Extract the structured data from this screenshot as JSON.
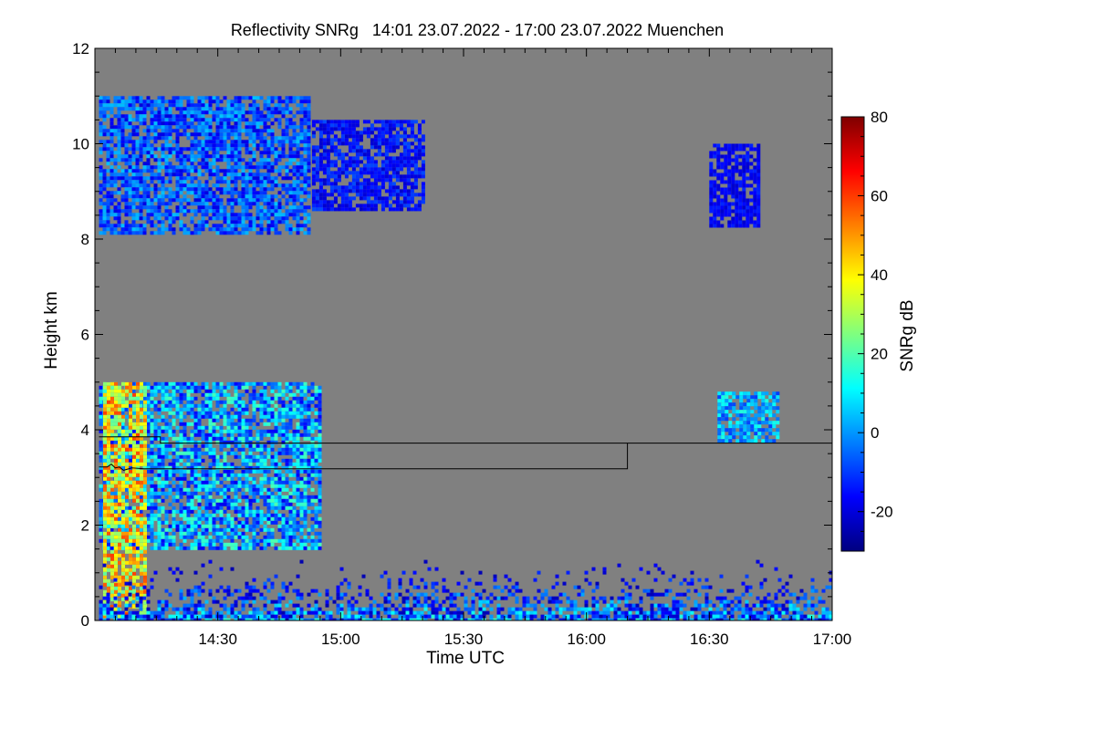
{
  "chart_data": {
    "type": "heatmap",
    "title": "Reflectivity SNRg   14:01 23.07.2022 - 17:00 23.07.2022 Muenchen",
    "xlabel": "Time UTC",
    "ylabel": "Height km",
    "colorbar_label": "SNRg dB",
    "x_range": [
      "14:01",
      "17:00"
    ],
    "x_ticks": [
      "14:30",
      "15:00",
      "15:30",
      "16:00",
      "16:30",
      "17:00"
    ],
    "x_tick_minutes": [
      30,
      60,
      90,
      120,
      150,
      180
    ],
    "ylim": [
      0,
      12
    ],
    "y_ticks": [
      0,
      2,
      4,
      6,
      8,
      10,
      12
    ],
    "colorbar_range": [
      -30,
      80
    ],
    "colorbar_ticks": [
      -20,
      0,
      20,
      40,
      60,
      80
    ],
    "background_color": "#808080",
    "colormap": [
      "#00007f",
      "#0000ff",
      "#007fff",
      "#00ffff",
      "#7fff7f",
      "#ffff00",
      "#ff7f00",
      "#ff0000",
      "#7f0000"
    ],
    "line_series": [
      {
        "points": [
          [
            1,
            3.85
          ],
          [
            16,
            3.85
          ],
          [
            16,
            3.72
          ],
          [
            180,
            3.72
          ]
        ]
      },
      {
        "points": [
          [
            1,
            3.22
          ],
          [
            3,
            3.22
          ],
          [
            4,
            3.28
          ],
          [
            5,
            3.2
          ],
          [
            6,
            3.22
          ],
          [
            7,
            3.15
          ],
          [
            9,
            3.2
          ],
          [
            12,
            3.18
          ],
          [
            130,
            3.18
          ],
          [
            130,
            3.72
          ]
        ]
      }
    ],
    "echo_regions": [
      {
        "name": "upper-cloud-band",
        "minutes": [
          1,
          52
        ],
        "height_km": [
          8.1,
          11.0
        ],
        "snr_db": [
          -20,
          5
        ]
      },
      {
        "name": "upper-cloud-patches",
        "minutes": [
          53,
          80
        ],
        "height_km": [
          8.6,
          10.5
        ],
        "snr_db": [
          -22,
          -8
        ]
      },
      {
        "name": "upper-cloud-east",
        "minutes": [
          150,
          162
        ],
        "height_km": [
          8.3,
          10.0
        ],
        "snr_db": [
          -22,
          -12
        ]
      },
      {
        "name": "mid-level-precip",
        "minutes": [
          1,
          55
        ],
        "height_km": [
          1.5,
          5.0
        ],
        "snr_db": [
          -18,
          20
        ]
      },
      {
        "name": "convective-core",
        "minutes": [
          2,
          12
        ],
        "height_km": [
          0,
          5.0
        ],
        "snr_db": [
          20,
          60
        ]
      },
      {
        "name": "mid-level-east-cell",
        "minutes": [
          152,
          167
        ],
        "height_km": [
          3.8,
          4.8
        ],
        "snr_db": [
          -10,
          15
        ]
      },
      {
        "name": "boundary-layer-clutter",
        "minutes": [
          1,
          180
        ],
        "height_km": [
          0,
          1.5
        ],
        "snr_db": [
          -25,
          20
        ]
      }
    ]
  }
}
